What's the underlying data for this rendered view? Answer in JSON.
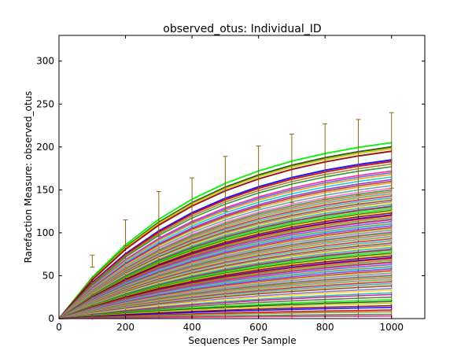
{
  "chart_data": {
    "type": "line",
    "title": "observed_otus: Individual_ID",
    "xlabel": "Sequences Per Sample",
    "ylabel": "Rarefaction Measure: observed_otus",
    "xlim": [
      0,
      1100
    ],
    "ylim": [
      0,
      330
    ],
    "xticks": [
      "0",
      "200",
      "400",
      "600",
      "800",
      "1000"
    ],
    "yticks": [
      "0",
      "50",
      "100",
      "150",
      "200",
      "250",
      "300"
    ],
    "grid": false,
    "legend": "none",
    "x": [
      0,
      100,
      200,
      300,
      400,
      500,
      600,
      700,
      800,
      900,
      1000
    ],
    "series_finals": [
      205,
      200,
      198,
      195,
      185,
      183,
      180,
      177,
      172,
      170,
      168,
      165,
      162,
      160,
      158,
      155,
      152,
      150,
      148,
      146,
      145,
      143,
      141,
      140,
      138,
      136,
      135,
      133,
      131,
      130,
      128,
      126,
      125,
      123,
      121,
      120,
      118,
      116,
      115,
      113,
      111,
      110,
      108,
      106,
      105,
      103,
      101,
      100,
      98,
      96,
      95,
      93,
      91,
      90,
      88,
      86,
      85,
      83,
      81,
      80,
      78,
      76,
      75,
      73,
      71,
      70,
      68,
      66,
      65,
      63,
      61,
      60,
      58,
      56,
      55,
      53,
      51,
      50,
      48,
      46,
      45,
      43,
      41,
      40,
      38,
      35,
      33,
      30,
      28,
      25,
      22,
      20,
      18,
      15,
      13,
      10,
      8,
      5,
      3
    ],
    "series_colors": [
      "#00ee00",
      "#1a4a00",
      "#c8c800",
      "#8b0000",
      "#0000ff",
      "#cc0000",
      "#9a7a20",
      "#228b22",
      "#ff1493",
      "#4169e1",
      "#ff8c00",
      "#00ced1",
      "#8a2be2",
      "#b22222",
      "#daa520",
      "#5f9ea0",
      "#ff69b4",
      "#2e8b57",
      "#d2691e",
      "#6495ed",
      "#9acd32",
      "#dc143c",
      "#00bfff",
      "#bdb76b",
      "#8b4513",
      "#7b68ee",
      "#ffd700",
      "#20b2aa",
      "#c71585",
      "#556b2f"
    ],
    "error_bars": [
      {
        "x": 100,
        "mean": 67,
        "sd": 7
      },
      {
        "x": 200,
        "mean": 100,
        "sd": 15
      },
      {
        "x": 300,
        "mean": 122,
        "sd": 26
      },
      {
        "x": 400,
        "mean": 138,
        "sd": 26
      },
      {
        "x": 500,
        "mean": 157,
        "sd": 32
      },
      {
        "x": 600,
        "mean": 165,
        "sd": 36
      },
      {
        "x": 700,
        "mean": 175,
        "sd": 40
      },
      {
        "x": 800,
        "mean": 183,
        "sd": 44
      },
      {
        "x": 900,
        "mean": 188,
        "sd": 44
      },
      {
        "x": 1000,
        "mean": 196,
        "sd": 44
      }
    ]
  }
}
